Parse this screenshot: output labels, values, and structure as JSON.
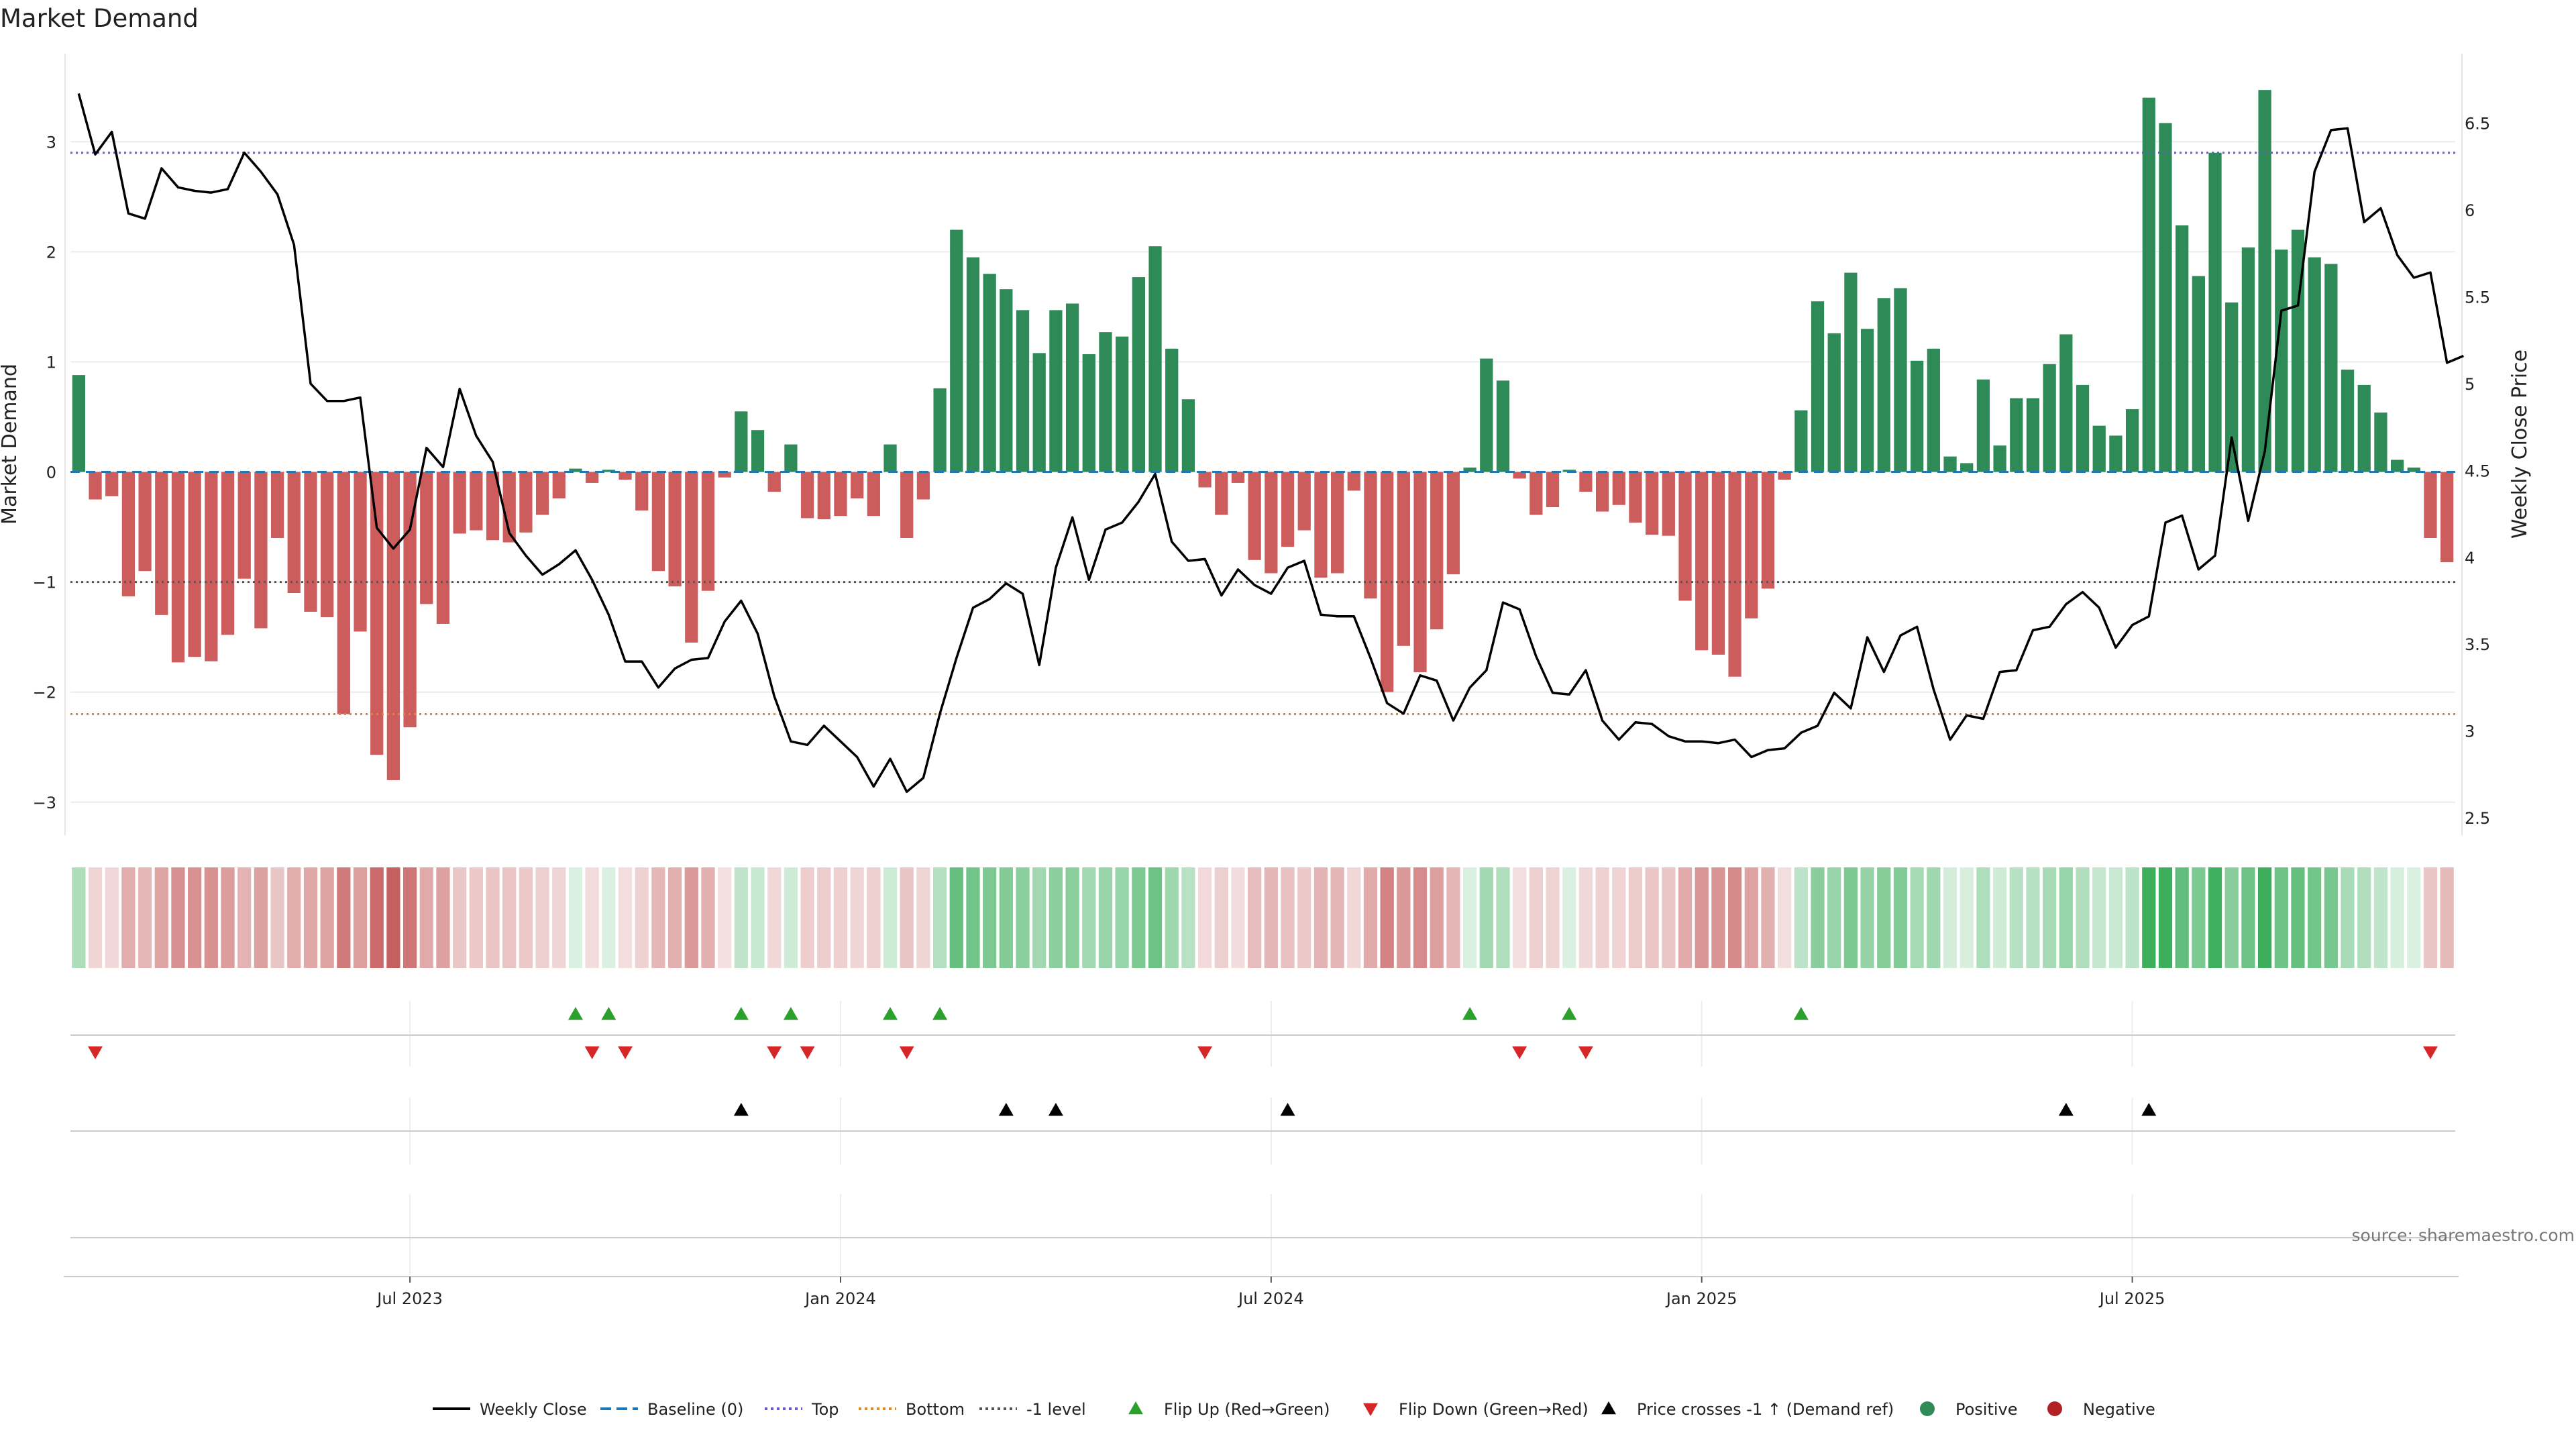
{
  "chart_data": {
    "type": "bar+line",
    "title": "Market Demand",
    "ylabel_left": "Market Demand",
    "ylabel_right": "Weekly Close Price",
    "ylim_left": [
      -3.3,
      3.8
    ],
    "ylim_right": [
      2.4,
      6.9
    ],
    "yticks_left": [
      3,
      2,
      1,
      0,
      -1,
      -2,
      -3
    ],
    "yticks_left_labels": [
      "3",
      "2",
      "1",
      "0",
      "−1",
      "−2",
      "−3"
    ],
    "yticks_right": [
      6.5,
      6,
      5.5,
      5,
      4.5,
      4,
      3.5,
      3,
      2.5
    ],
    "yticks_right_labels": [
      "6.5",
      "6",
      "5.5",
      "5",
      "4.5",
      "4",
      "3.5",
      "3",
      "2.5"
    ],
    "xtick_labels": [
      {
        "week": 20,
        "label": "Jul 2023"
      },
      {
        "week": 46,
        "label": "Jan 2024"
      },
      {
        "week": 72,
        "label": "Jul 2024"
      },
      {
        "week": 98,
        "label": "Jan 2025"
      },
      {
        "week": 124,
        "label": "Jul 2025"
      }
    ],
    "reference_lines": {
      "top": 2.9,
      "bottom": -2.2,
      "minus_one": -1,
      "baseline": 0
    },
    "demand": [
      0.88,
      -0.25,
      -0.22,
      -1.13,
      -0.9,
      -1.3,
      -1.73,
      -1.68,
      -1.72,
      -1.48,
      -0.97,
      -1.42,
      -0.6,
      -1.1,
      -1.27,
      -1.32,
      -2.2,
      -1.45,
      -2.57,
      -2.8,
      -2.32,
      -1.2,
      -1.38,
      -0.56,
      -0.53,
      -0.62,
      -0.64,
      -0.55,
      -0.39,
      -0.24,
      0.03,
      -0.1,
      0.02,
      -0.07,
      -0.35,
      -0.9,
      -1.04,
      -1.55,
      -1.08,
      -0.05,
      0.55,
      0.38,
      -0.18,
      0.25,
      -0.42,
      -0.43,
      -0.4,
      -0.24,
      -0.4,
      0.25,
      -0.6,
      -0.25,
      0.76,
      2.2,
      1.95,
      1.8,
      1.66,
      1.47,
      1.08,
      1.47,
      1.53,
      1.07,
      1.27,
      1.23,
      1.77,
      2.05,
      1.12,
      0.66,
      -0.14,
      -0.39,
      -0.1,
      -0.8,
      -0.92,
      -0.68,
      -0.53,
      -0.96,
      -0.92,
      -0.17,
      -1.15,
      -2.0,
      -1.58,
      -1.82,
      -1.43,
      -0.93,
      0.04,
      1.03,
      0.83,
      -0.06,
      -0.39,
      -0.32,
      0.02,
      -0.18,
      -0.36,
      -0.3,
      -0.46,
      -0.57,
      -0.58,
      -1.17,
      -1.62,
      -1.66,
      -1.86,
      -1.33,
      -1.06,
      -0.07,
      0.56,
      1.55,
      1.26,
      1.81,
      1.3,
      1.58,
      1.67,
      1.01,
      1.12,
      0.14,
      0.08,
      0.84,
      0.24,
      0.67,
      0.67,
      0.98,
      1.25,
      0.79,
      0.42,
      0.33,
      0.57,
      3.4,
      3.17,
      2.24,
      1.78,
      2.9,
      1.54,
      2.04,
      3.47,
      2.02,
      2.2,
      1.95,
      1.89,
      0.93,
      0.79,
      0.54,
      0.11,
      0.04,
      -0.6,
      -0.82
    ],
    "weekly_close": [
      6.67,
      6.32,
      6.45,
      5.98,
      5.95,
      6.24,
      6.13,
      6.11,
      6.1,
      6.12,
      6.33,
      6.22,
      6.09,
      5.8,
      5,
      4.9,
      4.9,
      4.92,
      4.17,
      4.05,
      4.16,
      4.63,
      4.52,
      4.97,
      4.7,
      4.55,
      4.14,
      4.01,
      3.9,
      3.96,
      4.04,
      3.87,
      3.67,
      3.4,
      3.4,
      3.25,
      3.36,
      3.41,
      3.42,
      3.63,
      3.75,
      3.56,
      3.2,
      2.94,
      2.92,
      3.03,
      2.94,
      2.85,
      2.68,
      2.84,
      2.65,
      2.73,
      3.1,
      3.42,
      3.71,
      3.76,
      3.85,
      3.79,
      3.38,
      3.94,
      4.23,
      3.87,
      4.16,
      4.2,
      4.32,
      4.48,
      4.09,
      3.98,
      3.99,
      3.78,
      3.93,
      3.84,
      3.79,
      3.94,
      3.98,
      3.67,
      3.66,
      3.66,
      3.42,
      3.16,
      3.1,
      3.32,
      3.29,
      3.06,
      3.25,
      3.35,
      3.74,
      3.7,
      3.43,
      3.22,
      3.21,
      3.35,
      3.06,
      2.95,
      3.05,
      3.04,
      2.97,
      2.94,
      2.94,
      2.93,
      2.95,
      2.85,
      2.89,
      2.9,
      2.99,
      3.03,
      3.22,
      3.13,
      3.54,
      3.34,
      3.55,
      3.6,
      3.24,
      2.95,
      3.09,
      3.07,
      3.34,
      3.35,
      3.58,
      3.6,
      3.73,
      3.8,
      3.71,
      3.48,
      3.61,
      3.66,
      4.2,
      4.24,
      3.93,
      4.01,
      4.69,
      4.21,
      4.61,
      5.42,
      5.45,
      6.22,
      6.46,
      6.47,
      5.93,
      6.01,
      5.74,
      5.61,
      5.64,
      5.12,
      5.16
    ],
    "flip_up_weeks": [
      30,
      32,
      40,
      43,
      49,
      52,
      84,
      90,
      104
    ],
    "flip_down_weeks": [
      1,
      31,
      33,
      42,
      44,
      50,
      68,
      87,
      91,
      142
    ],
    "price_cross_weeks": [
      40,
      56,
      59,
      73,
      120,
      125
    ],
    "legend": [
      {
        "label": "Weekly Close",
        "symbol": "line",
        "color": "#000000"
      },
      {
        "label": "Baseline (0)",
        "symbol": "dash",
        "color": "#1f77b4"
      },
      {
        "label": "Top",
        "symbol": "dot",
        "color": "#6a5acd"
      },
      {
        "label": "Bottom",
        "symbol": "dot",
        "color": "#e08a1e"
      },
      {
        "label": "-1 level",
        "symbol": "dot",
        "color": "#555555"
      },
      {
        "label": "Flip Up (Red→Green)",
        "symbol": "tri-up",
        "color": "#2ca02c"
      },
      {
        "label": "Flip Down (Green→Red)",
        "symbol": "tri-down",
        "color": "#d62728"
      },
      {
        "label": "Price crosses -1 ↑ (Demand ref)",
        "symbol": "tri-up",
        "color": "#000000"
      },
      {
        "label": "Positive",
        "symbol": "circle",
        "color": "#2e8b57"
      },
      {
        "label": "Negative",
        "symbol": "circle",
        "color": "#b22222"
      }
    ],
    "source_text": "source: sharemaestro.com"
  },
  "colors": {
    "positive_bar": "#2e8b57",
    "negative_bar": "#cd5c5c",
    "strip_positive": "#3cae5c",
    "strip_negative": "#c45858",
    "flip_up": "#2ca02c",
    "flip_down": "#d62728",
    "price_cross": "#000000",
    "line": "#000000",
    "top": "#6a5acd",
    "bottom": "#e08a1e",
    "minus_one": "#555555",
    "baseline": "#1f77b4",
    "grid": "#ececec"
  }
}
